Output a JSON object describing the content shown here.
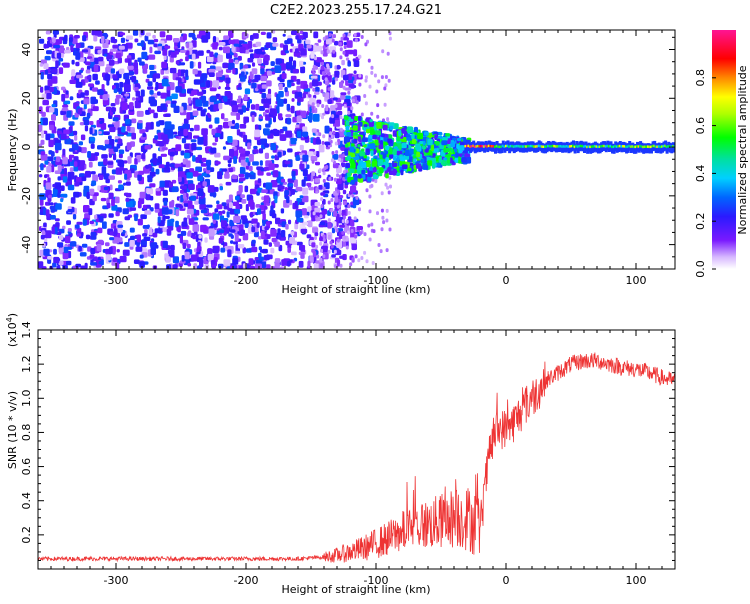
{
  "title": "C2E2.2023.255.17.24.G21",
  "chart_data": [
    {
      "type": "heatmap",
      "xlabel": "Height of straight line (km)",
      "ylabel": "Frequency (Hz)",
      "xlim": [
        -360,
        130
      ],
      "ylim": [
        -50,
        48
      ],
      "xticks": [
        -300,
        -200,
        -100,
        0,
        100
      ],
      "yticks": [
        -40,
        -20,
        0,
        20,
        40
      ],
      "colorbar": {
        "label": "Normalized spectral amplitude",
        "range": [
          0,
          1
        ],
        "ticks": [
          "0.0",
          "0.2",
          "0.4",
          "0.6",
          "0.8"
        ],
        "tick_values": [
          0.0,
          0.2,
          0.4,
          0.6,
          0.8
        ],
        "colormap": "white-purple-blue-cyan-green-yellow-red-magenta"
      },
      "features": [
        {
          "region": "broadband noise",
          "x_range": [
            -360,
            -120
          ],
          "freq_range": [
            -48,
            48
          ],
          "amplitude": "0.1-0.3"
        },
        {
          "region": "narrowing band",
          "x_range": [
            -120,
            -30
          ],
          "freq_range": [
            -10,
            10
          ],
          "amplitude": "0.2-0.6"
        },
        {
          "region": "coherent carrier",
          "x_range": [
            -30,
            130
          ],
          "freq_range": [
            -2,
            2
          ],
          "amplitude": "0.4-1.0"
        }
      ]
    },
    {
      "type": "line",
      "xlabel": "Height of straight line (km)",
      "ylabel": "SNR (10 * v/v)",
      "y_multiplier": "(x10",
      "y_multiplier_exp": "4",
      "y_multiplier_close": ")",
      "xlim": [
        -360,
        130
      ],
      "ylim": [
        0,
        1.4
      ],
      "xticks": [
        -300,
        -200,
        -100,
        0,
        100
      ],
      "yticks": [
        0.2,
        0.4,
        0.6,
        0.8,
        1.0,
        1.2,
        1.4
      ],
      "ytick_labels": [
        "0.2",
        "0.4",
        "0.6",
        "0.8",
        "1.0",
        "1.2",
        "1.4"
      ],
      "color": "#ee3333",
      "series": [
        {
          "x": [
            -360,
            -340,
            -320,
            -300,
            -280,
            -260,
            -240,
            -220,
            -200,
            -180,
            -160,
            -140,
            -130,
            -120,
            -110,
            -100,
            -90,
            -80,
            -70,
            -60,
            -50,
            -40,
            -30,
            -25,
            -20,
            -18,
            -15,
            -12,
            -10,
            -8,
            -5,
            0,
            5,
            10,
            15,
            20,
            25,
            30,
            40,
            50,
            60,
            70,
            80,
            90,
            100,
            110,
            120,
            130
          ],
          "y": [
            0.06,
            0.06,
            0.06,
            0.06,
            0.06,
            0.06,
            0.06,
            0.06,
            0.06,
            0.06,
            0.06,
            0.07,
            0.08,
            0.1,
            0.12,
            0.15,
            0.18,
            0.22,
            0.25,
            0.26,
            0.28,
            0.3,
            0.3,
            0.28,
            0.25,
            0.35,
            0.55,
            0.7,
            0.75,
            0.8,
            0.82,
            0.82,
            0.85,
            0.9,
            0.96,
            1.0,
            1.05,
            1.1,
            1.15,
            1.2,
            1.22,
            1.22,
            1.2,
            1.18,
            1.17,
            1.15,
            1.12,
            1.1
          ]
        }
      ]
    }
  ]
}
